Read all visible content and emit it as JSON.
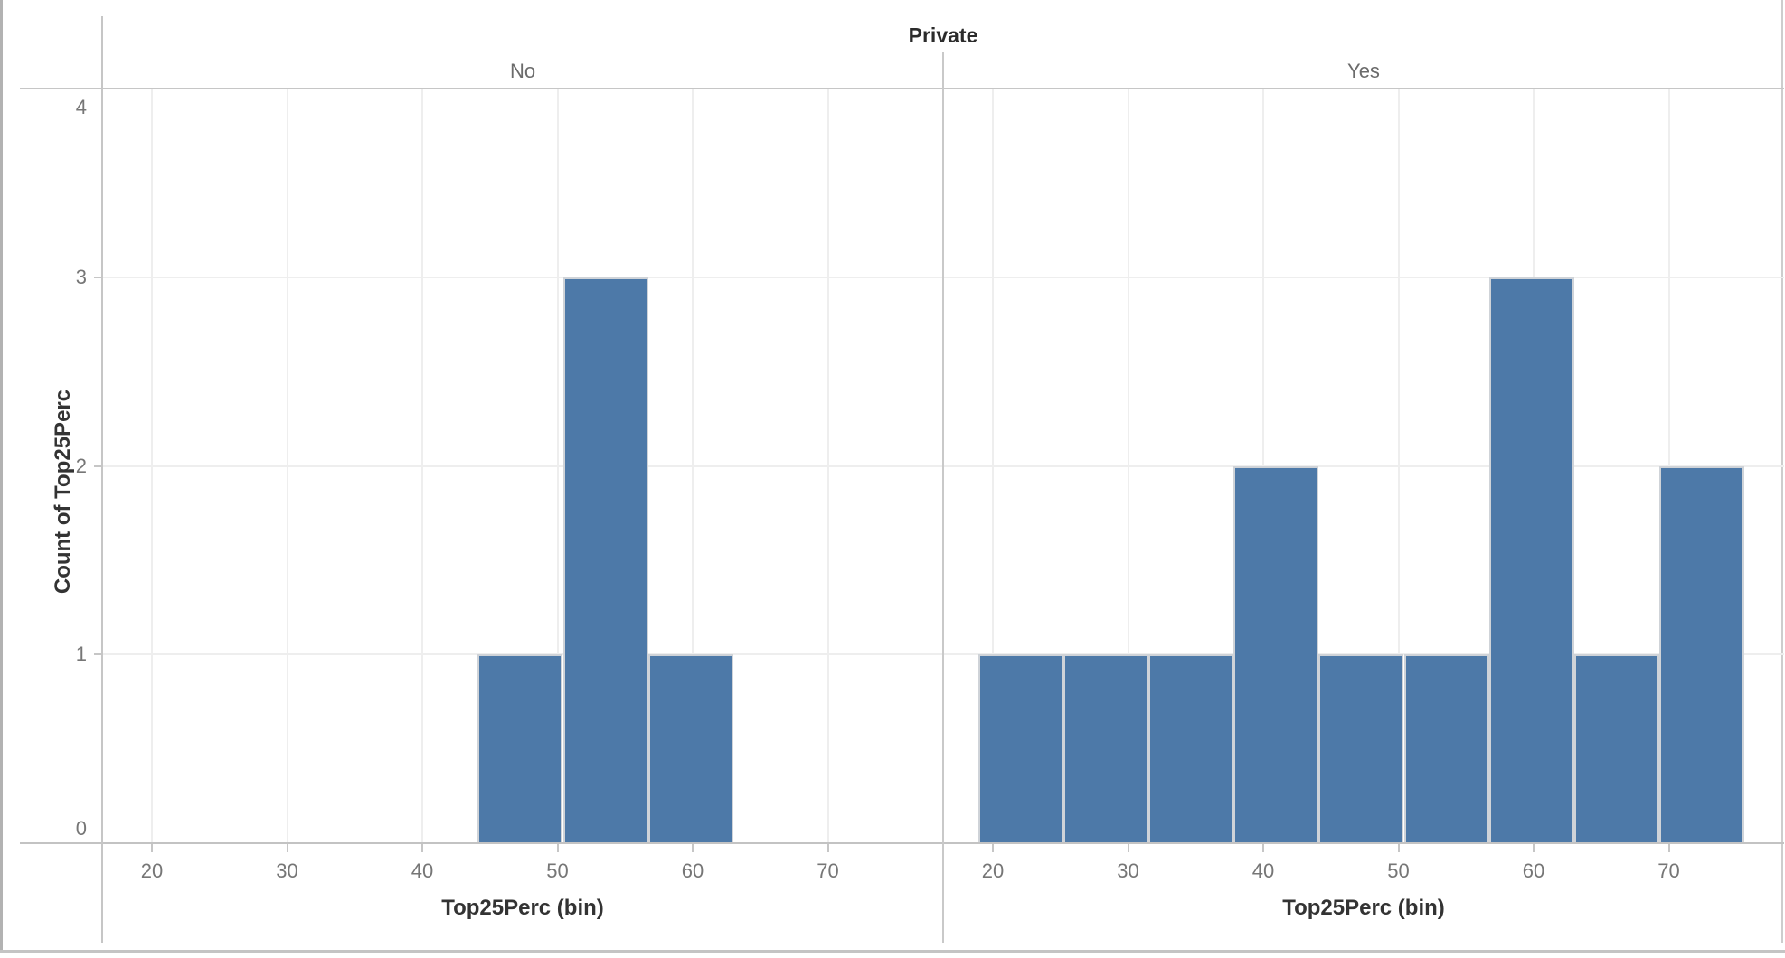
{
  "title": "Private",
  "chart_data": {
    "type": "bar",
    "subtype": "faceted-histogram",
    "title": "Private",
    "y_axis": {
      "title": "Count of Top25Perc",
      "ticks": [
        0,
        1,
        2,
        3,
        4
      ],
      "range": [
        0,
        4
      ],
      "grid": true
    },
    "x_axis": {
      "title": "Top25Perc (bin)",
      "ticks": [
        20,
        30,
        40,
        50,
        60,
        70
      ],
      "bin_width": 6.3,
      "grid": true
    },
    "facets": [
      {
        "label": "No",
        "bins": [
          {
            "start": 44.1,
            "end": 50.4,
            "count": 1
          },
          {
            "start": 50.4,
            "end": 56.7,
            "count": 3
          },
          {
            "start": 56.7,
            "end": 63.0,
            "count": 1
          }
        ]
      },
      {
        "label": "Yes",
        "bins": [
          {
            "start": 18.9,
            "end": 25.2,
            "count": 1
          },
          {
            "start": 25.2,
            "end": 31.5,
            "count": 1
          },
          {
            "start": 31.5,
            "end": 37.8,
            "count": 1
          },
          {
            "start": 37.8,
            "end": 44.1,
            "count": 2
          },
          {
            "start": 44.1,
            "end": 50.4,
            "count": 1
          },
          {
            "start": 50.4,
            "end": 56.7,
            "count": 1
          },
          {
            "start": 56.7,
            "end": 63.0,
            "count": 3
          },
          {
            "start": 63.0,
            "end": 69.3,
            "count": 1
          },
          {
            "start": 69.3,
            "end": 75.6,
            "count": 2
          }
        ]
      }
    ],
    "colors": {
      "bar_fill": "#4d79a8",
      "bar_border": "#cfd3d8",
      "axis_line": "#c6c6c6",
      "gridline": "#eeeeee",
      "tick_text": "#767676",
      "header_text": "#6b6b6b",
      "title_text": "#2b2b2b"
    },
    "legend": null
  }
}
